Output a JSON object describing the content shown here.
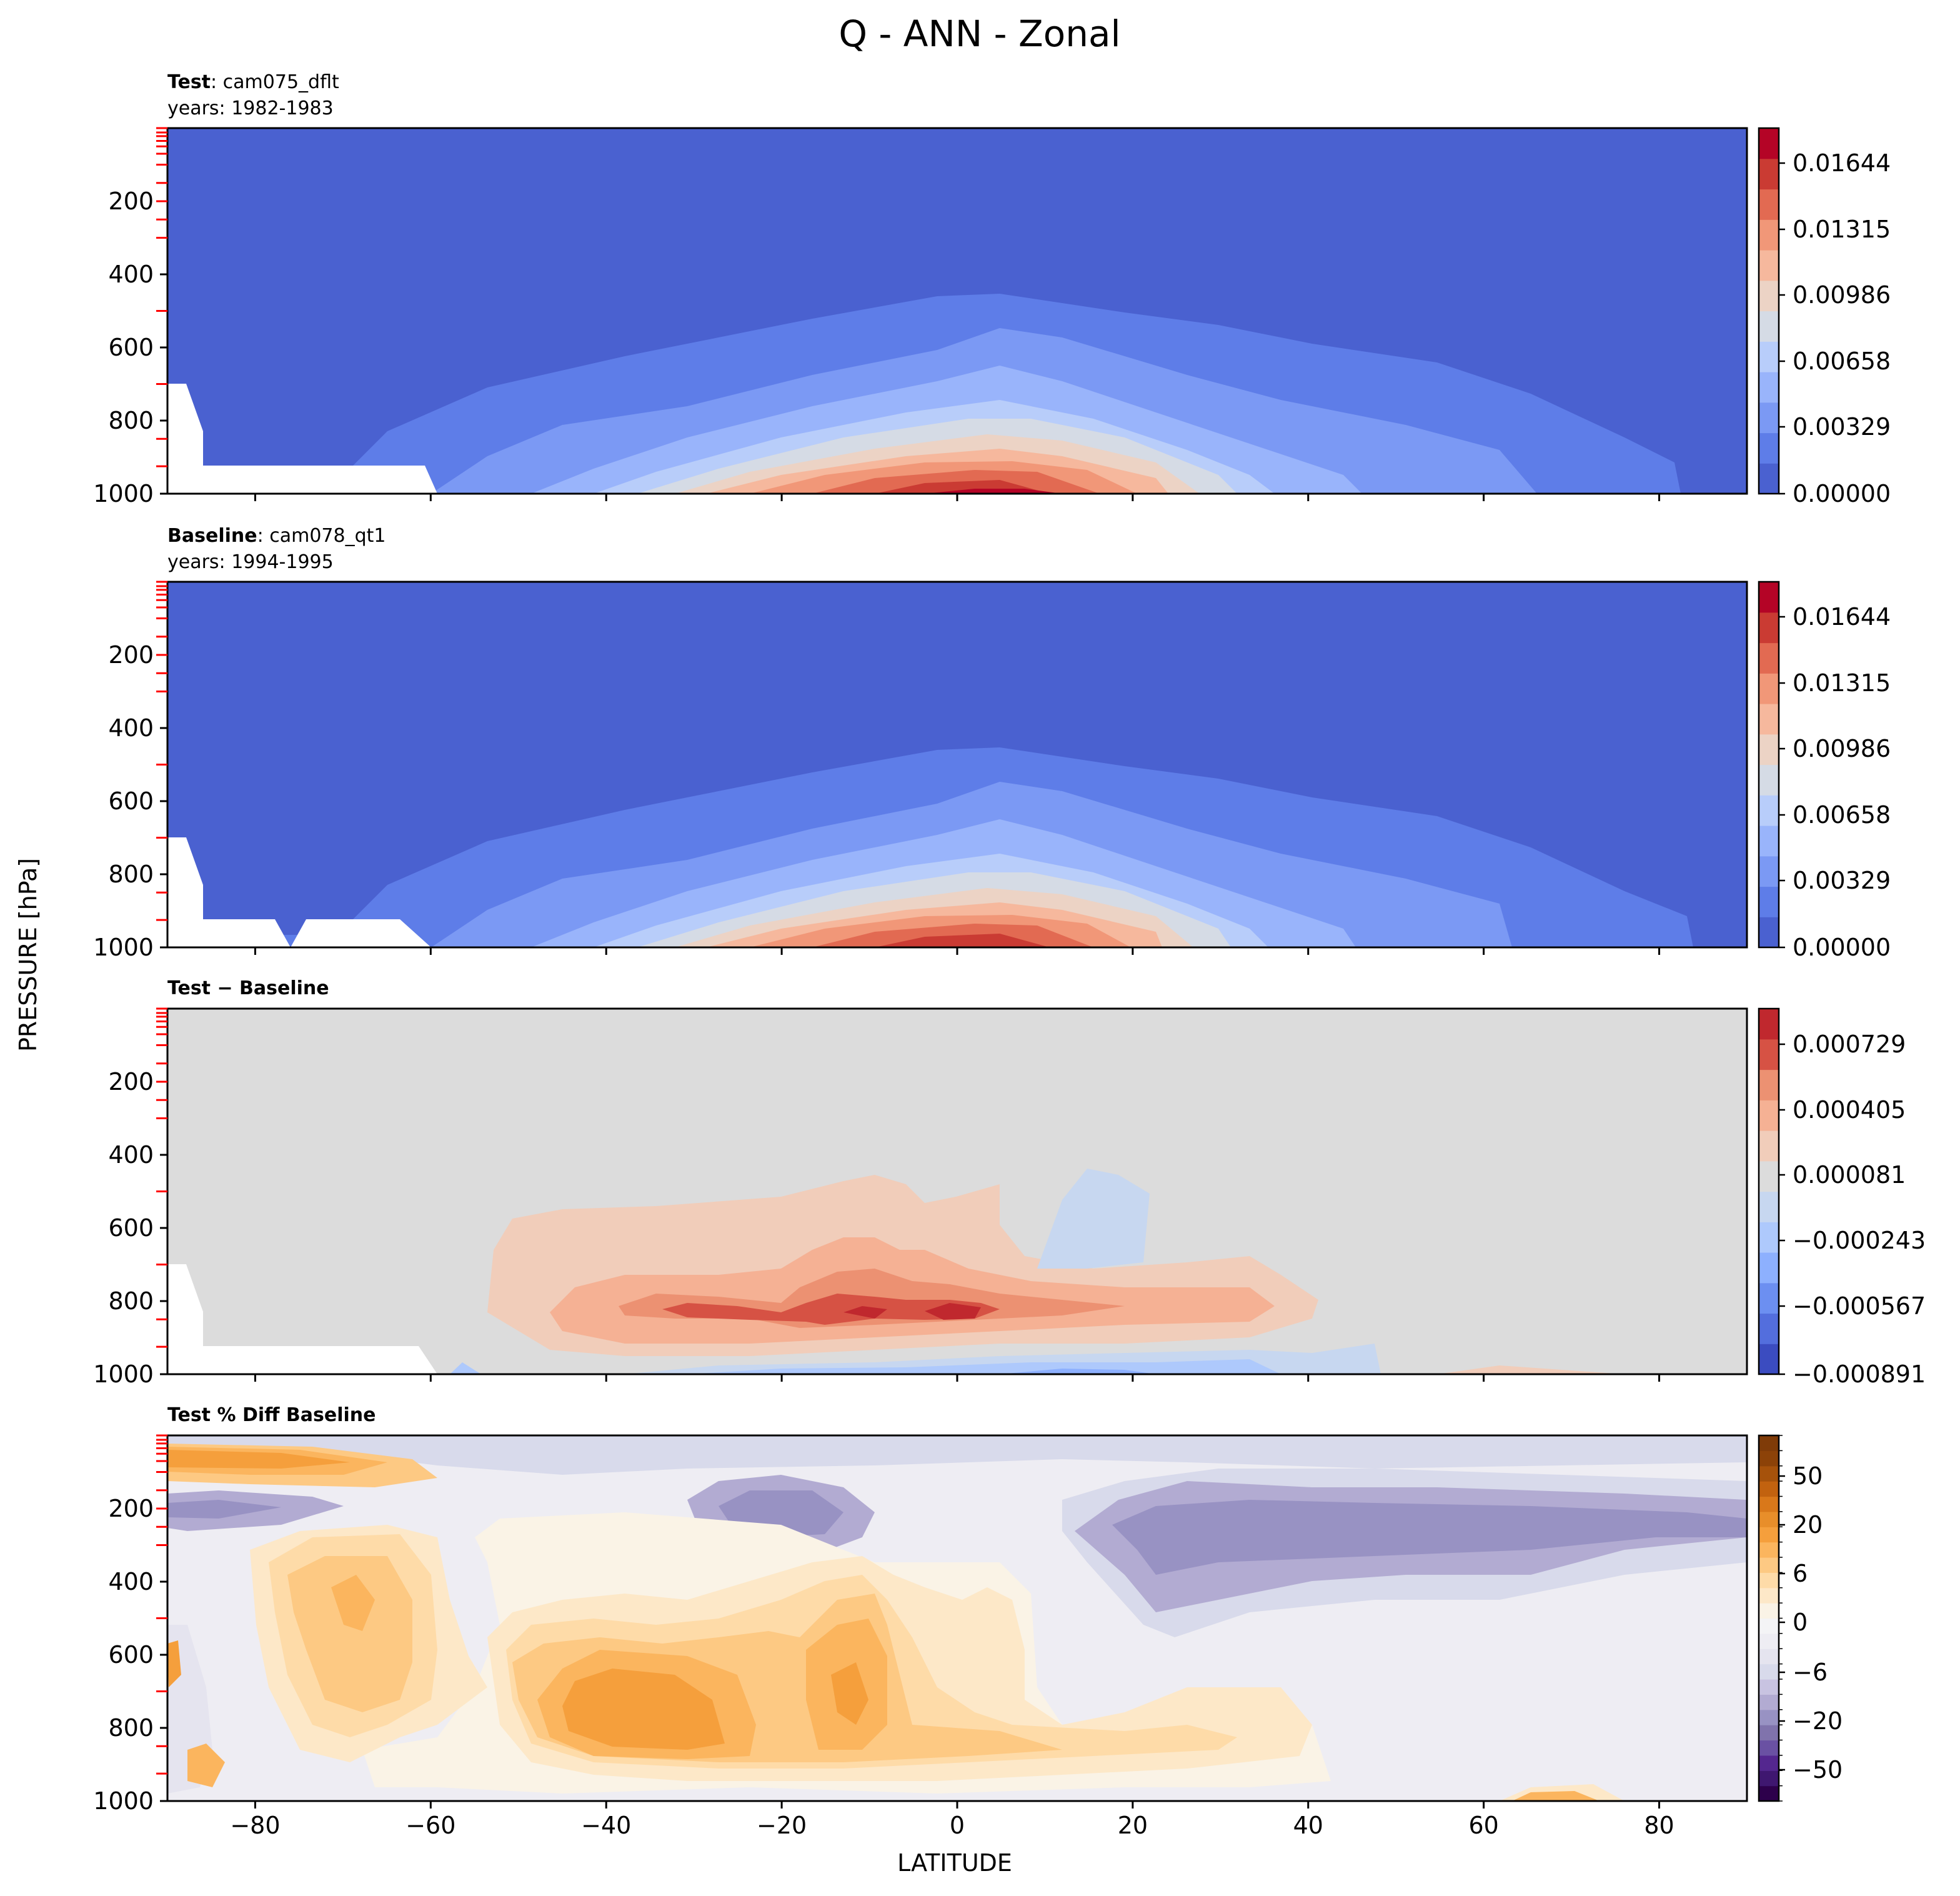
{
  "figure": {
    "title": "Q - ANN - Zonal",
    "ylabel": "PRESSURE [hPa]",
    "xlabel": "LATITUDE"
  },
  "chart_data": [
    {
      "type": "heatmap",
      "id": "test",
      "title_bold": "Test",
      "title_rest": ": cam075_dflt",
      "subtitle": "years: 1982-1983",
      "x": [
        -90,
        90
      ],
      "y": [
        0,
        1000
      ],
      "xticks": [
        "-80",
        "-60",
        "-40",
        "-20",
        "0",
        "20",
        "40",
        "60",
        "80"
      ],
      "yticks": [
        "200",
        "400",
        "600",
        "800",
        "1000"
      ],
      "colorbar": {
        "ticks": [
          "0.01644",
          "0.01315",
          "0.00986",
          "0.00658",
          "0.00329",
          "0.00000"
        ],
        "range": [
          0,
          0.0181
        ],
        "levels": 11,
        "colors": [
          "#4a61d0",
          "#5e7de8",
          "#7b99f4",
          "#99b4fb",
          "#b8cdfa",
          "#d5dbe5",
          "#ecd3c5",
          "#f6b89d",
          "#f19778",
          "#e26a52",
          "#ca3b33",
          "#b40426"
        ]
      }
    },
    {
      "type": "heatmap",
      "id": "baseline",
      "title_bold": "Baseline",
      "title_rest": ": cam078_qt1",
      "subtitle": "years: 1994-1995",
      "x": [
        -90,
        90
      ],
      "y": [
        0,
        1000
      ],
      "xticks": [
        "-80",
        "-60",
        "-40",
        "-20",
        "0",
        "20",
        "40",
        "60",
        "80"
      ],
      "yticks": [
        "200",
        "400",
        "600",
        "800",
        "1000"
      ],
      "colorbar": {
        "ticks": [
          "0.01644",
          "0.01315",
          "0.00986",
          "0.00658",
          "0.00329",
          "0.00000"
        ],
        "range": [
          0,
          0.0181
        ],
        "levels": 11,
        "colors": [
          "#4a61d0",
          "#5e7de8",
          "#7b99f4",
          "#99b4fb",
          "#b8cdfa",
          "#d5dbe5",
          "#ecd3c5",
          "#f6b89d",
          "#f19778",
          "#e26a52",
          "#ca3b33",
          "#b40426"
        ]
      }
    },
    {
      "type": "heatmap",
      "id": "diff",
      "title_bold": "Test − Baseline",
      "x": [
        -90,
        90
      ],
      "y": [
        0,
        1000
      ],
      "xticks": [
        "-80",
        "-60",
        "-40",
        "-20",
        "0",
        "20",
        "40",
        "60",
        "80"
      ],
      "yticks": [
        "200",
        "400",
        "600",
        "800",
        "1000"
      ],
      "colorbar": {
        "ticks": [
          "0.000729",
          "0.000405",
          "0.000081",
          "−0.000243",
          "−0.000567",
          "−0.000891"
        ],
        "range": [
          -0.000891,
          0.000891
        ],
        "levels": 11,
        "colors": [
          "#3b4cc0",
          "#536edd",
          "#6c8ff1",
          "#8db0fe",
          "#aec9fc",
          "#c7d7f0",
          "#dcdcdc",
          "#f1cdba",
          "#f5b194",
          "#ec9172",
          "#d65244",
          "#c0282e"
        ]
      }
    },
    {
      "type": "heatmap",
      "id": "pctdiff",
      "title_bold": "Test % Diff Baseline",
      "x": [
        -90,
        90
      ],
      "y": [
        0,
        1000
      ],
      "xticks": [
        "-80",
        "-60",
        "-40",
        "-20",
        "0",
        "20",
        "40",
        "60",
        "80"
      ],
      "yticks": [
        "200",
        "400",
        "600",
        "800",
        "1000"
      ],
      "colorbar": {
        "ticks": [
          "50",
          "20",
          "6",
          "0",
          "−6",
          "−20",
          "−50"
        ],
        "levels": 24,
        "colors": [
          "#2d004b",
          "#3f1770",
          "#54278f",
          "#6a51a3",
          "#8073ac",
          "#9892c3",
          "#b2abd2",
          "#c8c3e1",
          "#d8daeb",
          "#e5e4ef",
          "#eeedf3",
          "#f4f4f6",
          "#faf3e6",
          "#fde8c8",
          "#fedba8",
          "#fdc983",
          "#fbb55e",
          "#f59f3c",
          "#e88e2a",
          "#d9781a",
          "#c2620f",
          "#a6520b",
          "#8c4208",
          "#7f3b08"
        ]
      }
    }
  ]
}
